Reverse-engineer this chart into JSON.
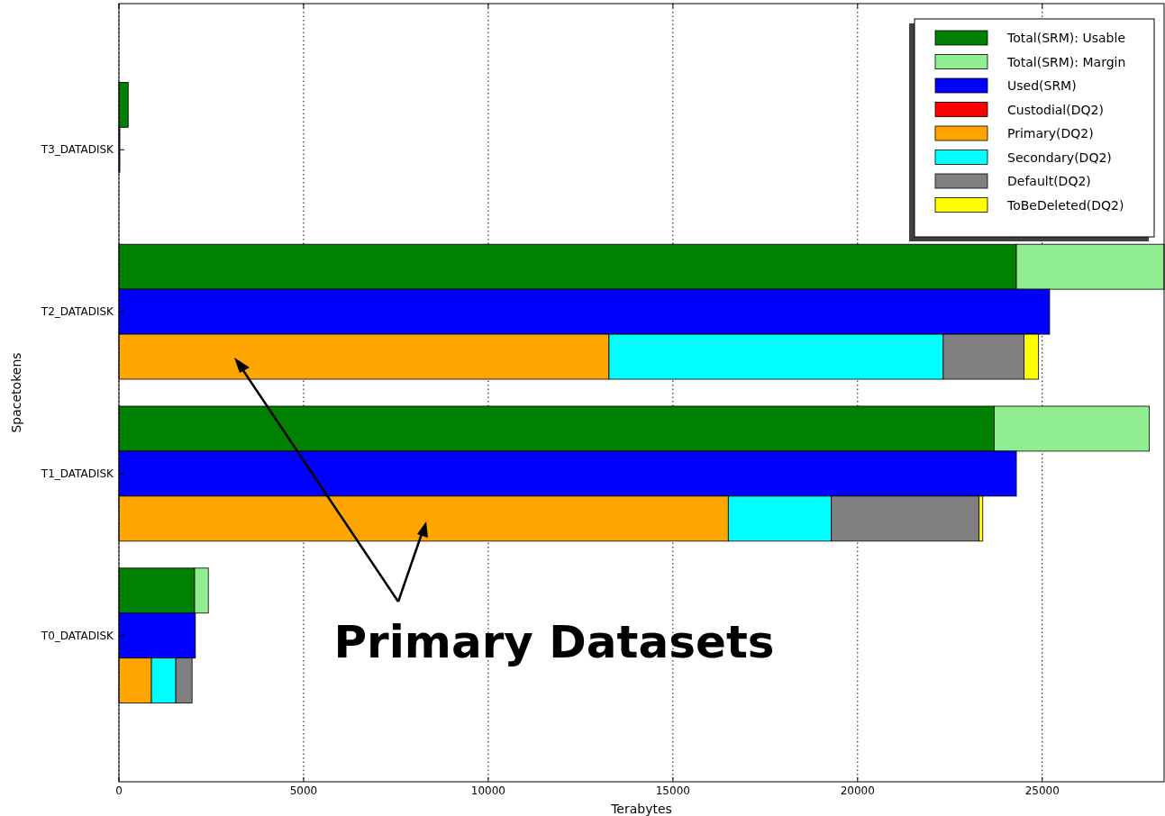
{
  "chart_data": {
    "type": "bar",
    "orientation": "horizontal",
    "stacked": true,
    "categories": [
      null,
      "T3_DATADISK",
      null,
      null,
      "T2_DATADISK",
      null,
      null,
      "T1_DATADISK",
      null,
      null,
      "T0_DATADISK",
      null
    ],
    "series": [
      {
        "name": "Total(SRM): Usable",
        "color": "#008000",
        "values": [
          250,
          null,
          null,
          24300,
          null,
          null,
          23700,
          null,
          null,
          2050,
          null,
          null
        ]
      },
      {
        "name": "Total(SRM): Margin",
        "color": "#90ee90",
        "values": [
          null,
          null,
          null,
          4000,
          null,
          null,
          4200,
          null,
          null,
          370,
          null,
          null
        ]
      },
      {
        "name": "Used(SRM)",
        "color": "#0000ff",
        "values": [
          null,
          25,
          null,
          null,
          25200,
          null,
          null,
          24300,
          null,
          null,
          2070,
          null
        ]
      },
      {
        "name": "Custodial(DQ2)",
        "color": "#ff0000",
        "values": [
          null,
          null,
          0,
          null,
          null,
          0,
          null,
          null,
          0,
          null,
          null,
          0
        ]
      },
      {
        "name": "Primary(DQ2)",
        "color": "#ffa500",
        "values": [
          null,
          null,
          null,
          null,
          null,
          13270,
          null,
          null,
          16500,
          null,
          null,
          880
        ]
      },
      {
        "name": "Secondary(DQ2)",
        "color": "#00ffff",
        "values": [
          null,
          null,
          null,
          null,
          null,
          9050,
          null,
          null,
          2790,
          null,
          null,
          660
        ]
      },
      {
        "name": "Default(DQ2)",
        "color": "#808080",
        "values": [
          null,
          null,
          null,
          null,
          null,
          2190,
          null,
          null,
          4000,
          null,
          null,
          440
        ]
      },
      {
        "name": "ToBeDeleted(DQ2)",
        "color": "#ffff00",
        "values": [
          null,
          null,
          null,
          null,
          null,
          390,
          null,
          null,
          100,
          null,
          null,
          null
        ]
      }
    ],
    "xlim": [
      0,
      28300
    ],
    "xticks": [
      0,
      5000,
      10000,
      15000,
      20000,
      25000
    ],
    "xlabel": "Terabytes",
    "ylabel": "Spacetokens",
    "grid": "x",
    "legend": "top right",
    "annotations": [
      "Primary Datasets"
    ]
  }
}
